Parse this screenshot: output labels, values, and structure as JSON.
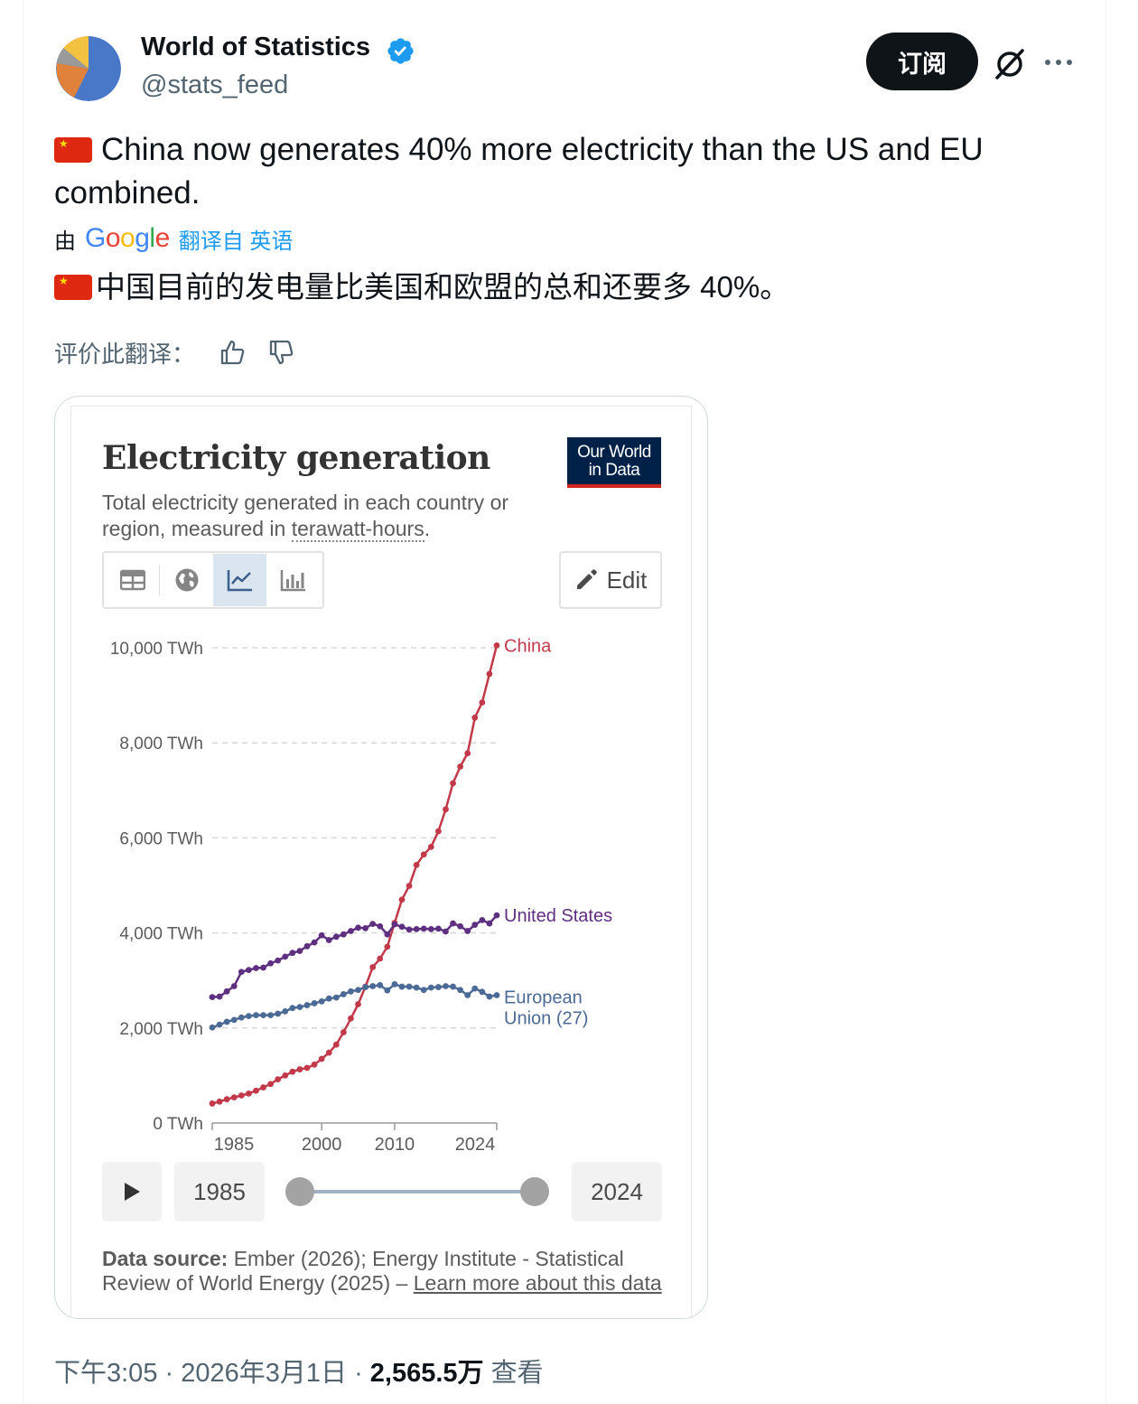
{
  "author": {
    "display_name": "World of Statistics",
    "handle": "@stats_feed"
  },
  "actions": {
    "subscribe_label": "订阅"
  },
  "post": {
    "text_line1": "China now generates 40% more electricity than the US and EU",
    "text_line2": "combined.",
    "translation_by": "由",
    "translation_engine": "Google",
    "translation_link": "翻译自 英语",
    "translated_text": "中国目前的发电量比美国和欧盟的总和还要多 40%。",
    "rate_label": "评价此翻译："
  },
  "card": {
    "title": "Electricity generation",
    "subtitle_before": "Total electricity generated in each country or region, measured in ",
    "subtitle_link": "terawatt-hours",
    "subtitle_after": ".",
    "logo_line1": "Our World",
    "logo_line2": "in Data",
    "edit_label": "Edit",
    "timeline_start": "1985",
    "timeline_end": "2024",
    "source_label": "Data source:",
    "source_text": " Ember (2026); Energy Institute - Statistical Review of World Energy (2025) – ",
    "source_link": "Learn more about this data"
  },
  "colors": {
    "china": "#c23a4a",
    "united_states": "#5f2f80",
    "european_union": "#4b6a95",
    "link_blue": "#1d9bf0"
  },
  "chart_data": {
    "type": "line",
    "title": "Electricity generation",
    "ylabel": "",
    "xlabel": "",
    "x_tick_labels": [
      "1985",
      "2000",
      "2010",
      "2024"
    ],
    "y_tick_labels": [
      "0 TWh",
      "2,000 TWh",
      "4,000 TWh",
      "6,000 TWh",
      "8,000 TWh",
      "10,000 TWh"
    ],
    "xlim": [
      1985,
      2024
    ],
    "ylim": [
      0,
      10000
    ],
    "grid": "horizontal dashed",
    "x": [
      1985,
      1986,
      1987,
      1988,
      1989,
      1990,
      1991,
      1992,
      1993,
      1994,
      1995,
      1996,
      1997,
      1998,
      1999,
      2000,
      2001,
      2002,
      2003,
      2004,
      2005,
      2006,
      2007,
      2008,
      2009,
      2010,
      2011,
      2012,
      2013,
      2014,
      2015,
      2016,
      2017,
      2018,
      2019,
      2020,
      2021,
      2022,
      2023,
      2024
    ],
    "series": [
      {
        "name": "China",
        "values": [
          410,
          450,
          500,
          540,
          580,
          620,
          680,
          750,
          820,
          920,
          1000,
          1080,
          1130,
          1160,
          1230,
          1350,
          1480,
          1650,
          1910,
          2200,
          2500,
          2870,
          3280,
          3460,
          3710,
          4210,
          4700,
          4990,
          5430,
          5650,
          5810,
          6140,
          6600,
          7150,
          7500,
          7780,
          8530,
          8850,
          9450,
          10050
        ]
      },
      {
        "name": "United States",
        "values": [
          2650,
          2660,
          2770,
          2880,
          3180,
          3220,
          3260,
          3270,
          3360,
          3420,
          3500,
          3580,
          3620,
          3720,
          3800,
          3950,
          3850,
          3920,
          3970,
          4040,
          4110,
          4100,
          4190,
          4140,
          3970,
          4180,
          4130,
          4070,
          4080,
          4090,
          4080,
          4090,
          4030,
          4200,
          4140,
          4040,
          4170,
          4270,
          4200,
          4370
        ]
      },
      {
        "name": "European Union (27)",
        "values": [
          2010,
          2070,
          2130,
          2170,
          2220,
          2250,
          2270,
          2270,
          2270,
          2300,
          2350,
          2420,
          2440,
          2480,
          2520,
          2560,
          2620,
          2640,
          2710,
          2770,
          2800,
          2860,
          2880,
          2900,
          2790,
          2920,
          2870,
          2870,
          2850,
          2800,
          2850,
          2860,
          2880,
          2870,
          2800,
          2690,
          2830,
          2760,
          2660,
          2690
        ]
      }
    ]
  },
  "footer": {
    "time": "下午3:05",
    "date": "2026年3月1日",
    "views_count": "2,565.5万",
    "views_label": "查看"
  }
}
